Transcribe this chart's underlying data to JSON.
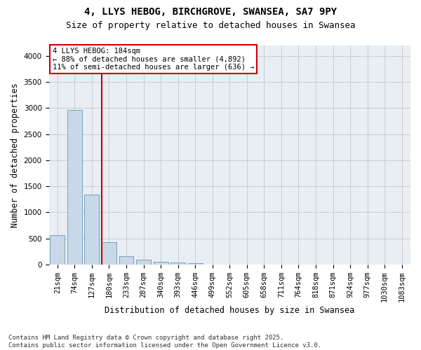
{
  "title_line1": "4, LLYS HEBOG, BIRCHGROVE, SWANSEA, SA7 9PY",
  "title_line2": "Size of property relative to detached houses in Swansea",
  "xlabel": "Distribution of detached houses by size in Swansea",
  "ylabel": "Number of detached properties",
  "categories": [
    "21sqm",
    "74sqm",
    "127sqm",
    "180sqm",
    "233sqm",
    "287sqm",
    "340sqm",
    "393sqm",
    "446sqm",
    "499sqm",
    "552sqm",
    "605sqm",
    "658sqm",
    "711sqm",
    "764sqm",
    "818sqm",
    "871sqm",
    "924sqm",
    "977sqm",
    "1030sqm",
    "1083sqm"
  ],
  "values": [
    560,
    2960,
    1340,
    430,
    160,
    100,
    60,
    40,
    20,
    5,
    2,
    0,
    0,
    0,
    0,
    0,
    0,
    0,
    0,
    0,
    0
  ],
  "bar_color": "#c8d8e8",
  "bar_edge_color": "#6699bb",
  "vline_color": "#cc0000",
  "vline_index": 3,
  "annotation_text": "4 LLYS HEBOG: 184sqm\n← 88% of detached houses are smaller (4,892)\n11% of semi-detached houses are larger (636) →",
  "annotation_box_color": "#cc0000",
  "ylim": [
    0,
    4200
  ],
  "yticks": [
    0,
    500,
    1000,
    1500,
    2000,
    2500,
    3000,
    3500,
    4000
  ],
  "grid_color": "#cccccc",
  "background_color": "#e8eef4",
  "footer_text": "Contains HM Land Registry data © Crown copyright and database right 2025.\nContains public sector information licensed under the Open Government Licence v3.0.",
  "title_fontsize": 10,
  "subtitle_fontsize": 9,
  "xlabel_fontsize": 8.5,
  "ylabel_fontsize": 8.5,
  "tick_fontsize": 7.5,
  "annotation_fontsize": 7.5,
  "footer_fontsize": 6.5
}
